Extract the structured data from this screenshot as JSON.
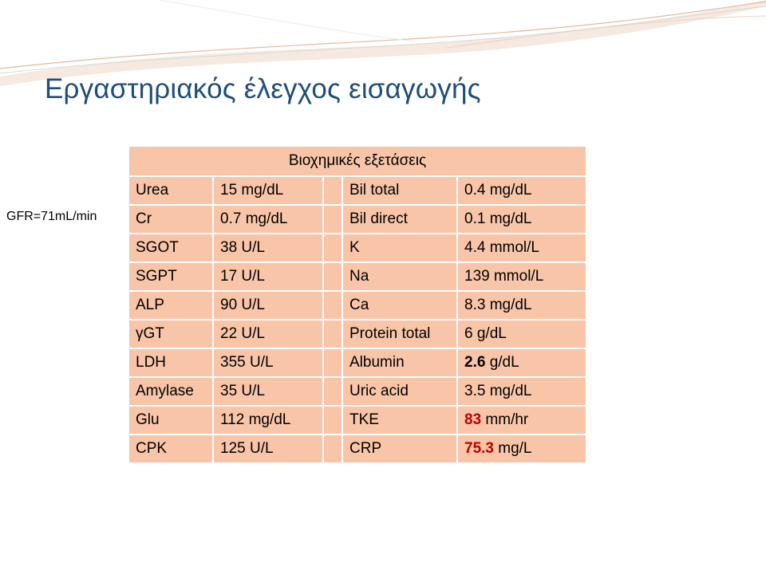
{
  "slide": {
    "title": "Εργαστηριακός έλεγχος εισαγωγής",
    "gfr_label": "GFR=71mL/min"
  },
  "table": {
    "header": "Βιοχημικές εξετάσεις",
    "rows": [
      {
        "left_name": "Urea",
        "left_value": "15 mg/dL",
        "right_name": "Bil total",
        "right_value": "0.4 mg/dL"
      },
      {
        "left_name": "Cr",
        "left_value": "0.7 mg/dL",
        "right_name": "Bil direct",
        "right_value": "0.1 mg/dL"
      },
      {
        "left_name": "SGOT",
        "left_value": "38 U/L",
        "right_name": "K",
        "right_value": "4.4 mmol/L"
      },
      {
        "left_name": "SGPT",
        "left_value": "17 U/L",
        "right_name": "Na",
        "right_value": "139 mmol/L"
      },
      {
        "left_name": "ALP",
        "left_value": "90 U/L",
        "right_name": "Ca",
        "right_value": "8.3 mg/dL"
      },
      {
        "left_name": "γGT",
        "left_value": "22 U/L",
        "right_name": "Protein total",
        "right_value": "6 g/dL"
      },
      {
        "left_name": "LDH",
        "left_value": "355 U/L",
        "right_name": "Albumin",
        "right_value_num": "2.6",
        "right_value_unit": " g/dL"
      },
      {
        "left_name": "Amylase",
        "left_value": "35 U/L",
        "right_name": "Uric acid",
        "right_value": "3.5 mg/dL"
      },
      {
        "left_name": "Glu",
        "left_value": "112 mg/dL",
        "right_name": "TKE",
        "right_value_num": "83",
        "right_value_unit": " mm/hr"
      },
      {
        "left_name": "CPK",
        "left_value": "125 U/L",
        "right_name": "CRP",
        "right_value_num": "75.3",
        "right_value_unit": " mg/L"
      }
    ]
  },
  "colors": {
    "cell_fill": "#f8c5a9",
    "title": "#1f4e79",
    "highlight": "#c00000"
  }
}
